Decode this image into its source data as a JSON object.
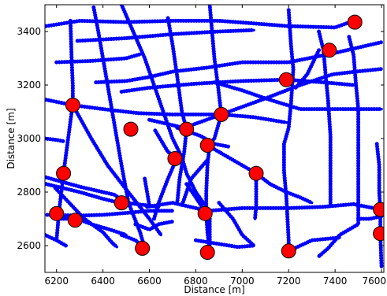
{
  "chart_data": {
    "type": "scatter",
    "xlabel": "Distance [m]",
    "ylabel": "Distance [m]",
    "xlim": [
      6150,
      7610
    ],
    "ylim": [
      2500,
      3500
    ],
    "xticks": [
      6200,
      6400,
      6600,
      6800,
      7000,
      7200,
      7400,
      7600
    ],
    "yticks": [
      2600,
      2800,
      3000,
      3200,
      3400
    ],
    "xtick_labels": [
      "6200",
      "6400",
      "6600",
      "6800",
      "7000",
      "7200",
      "7400",
      "7600"
    ],
    "ytick_labels": [
      "2600",
      "2800",
      "3000",
      "3200",
      "3400"
    ],
    "grid": false,
    "series": [
      {
        "kind": "road-network",
        "color": "#0000ff",
        "roads": [
          [
            [
              6155,
              3420
            ],
            [
              6300,
              3440
            ],
            [
              6500,
              3435
            ],
            [
              6700,
              3440
            ],
            [
              6900,
              3440
            ],
            [
              7200,
              3420
            ],
            [
              7400,
              3415
            ],
            [
              7480,
              3440
            ]
          ],
          [
            [
              6290,
              3365
            ],
            [
              6500,
              3375
            ],
            [
              6700,
              3390
            ],
            [
              6900,
              3400
            ],
            [
              7050,
              3405
            ]
          ],
          [
            [
              6200,
              3285
            ],
            [
              6350,
              3290
            ],
            [
              6500,
              3300
            ],
            [
              6560,
              3315
            ]
          ],
          [
            [
              6370,
              3210
            ],
            [
              6500,
              3215
            ],
            [
              6600,
              3230
            ],
            [
              6700,
              3250
            ],
            [
              6850,
              3265
            ],
            [
              7000,
              3285
            ],
            [
              7200,
              3285
            ],
            [
              7400,
              3320
            ],
            [
              7600,
              3360
            ]
          ],
          [
            [
              6480,
              3175
            ],
            [
              6600,
              3190
            ],
            [
              6800,
              3205
            ],
            [
              7000,
              3215
            ],
            [
              7190,
              3220
            ],
            [
              7350,
              3210
            ],
            [
              7480,
              3200
            ]
          ],
          [
            [
              6155,
              3145
            ],
            [
              6270,
              3125
            ],
            [
              6400,
              3110
            ],
            [
              6550,
              3095
            ],
            [
              6700,
              3090
            ],
            [
              6910,
              3090
            ],
            [
              7050,
              3080
            ],
            [
              7190,
              3060
            ]
          ],
          [
            [
              6600,
              3070
            ],
            [
              6750,
              3040
            ],
            [
              6910,
              3090
            ],
            [
              7100,
              3150
            ],
            [
              7250,
              3200
            ],
            [
              7390,
              3240
            ],
            [
              7490,
              3250
            ],
            [
              7600,
              3260
            ]
          ],
          [
            [
              6880,
              3210
            ],
            [
              7000,
              3180
            ],
            [
              7100,
              3150
            ],
            [
              7250,
              3110
            ],
            [
              7400,
              3110
            ],
            [
              7600,
              3110
            ]
          ],
          [
            [
              6590,
              2745
            ],
            [
              6700,
              2760
            ],
            [
              6850,
              2730
            ],
            [
              7000,
              2740
            ],
            [
              7200,
              2740
            ],
            [
              7350,
              2745
            ],
            [
              7480,
              2755
            ],
            [
              7595,
              2735
            ]
          ],
          [
            [
              6155,
              2855
            ],
            [
              6300,
              2820
            ],
            [
              6450,
              2790
            ],
            [
              6500,
              2760
            ],
            [
              6640,
              2745
            ]
          ],
          [
            [
              6155,
              2830
            ],
            [
              6300,
              2800
            ],
            [
              6400,
              2775
            ],
            [
              6480,
              2758
            ]
          ],
          [
            [
              6160,
              2715
            ],
            [
              6300,
              2712
            ],
            [
              6400,
              2715
            ],
            [
              6500,
              2722
            ],
            [
              6600,
              2730
            ],
            [
              6700,
              2730
            ]
          ],
          [
            [
              6220,
              2700
            ],
            [
              6290,
              2700
            ],
            [
              6350,
              2680
            ],
            [
              6430,
              2660
            ],
            [
              6500,
              2640
            ]
          ],
          [
            [
              6800,
              2620
            ],
            [
              6980,
              2595
            ],
            [
              7050,
              2600
            ]
          ],
          [
            [
              6260,
              3440
            ],
            [
              6265,
              3300
            ],
            [
              6270,
              3200
            ],
            [
              6270,
              3130
            ],
            [
              6250,
              3000
            ],
            [
              6230,
              2870
            ],
            [
              6210,
              2720
            ],
            [
              6200,
              2620
            ]
          ],
          [
            [
              6270,
              3125
            ],
            [
              6350,
              3000
            ],
            [
              6420,
              2900
            ],
            [
              6500,
              2810
            ],
            [
              6600,
              2700
            ],
            [
              6650,
              2640
            ]
          ],
          [
            [
              6195,
              2815
            ],
            [
              6260,
              2755
            ],
            [
              6320,
              2700
            ],
            [
              6400,
              2650
            ],
            [
              6440,
              2610
            ],
            [
              6460,
              2595
            ]
          ],
          [
            [
              6360,
              3490
            ],
            [
              6380,
              3400
            ],
            [
              6400,
              3300
            ],
            [
              6420,
              3200
            ],
            [
              6440,
              3100
            ],
            [
              6460,
              3000
            ],
            [
              6480,
              2900
            ],
            [
              6510,
              2760
            ],
            [
              6560,
              2650
            ],
            [
              6580,
              2590
            ]
          ],
          [
            [
              6480,
              3500
            ],
            [
              6530,
              3400
            ],
            [
              6580,
              3300
            ],
            [
              6620,
              3200
            ],
            [
              6660,
              3100
            ],
            [
              6700,
              3000
            ],
            [
              6740,
              2930
            ],
            [
              6760,
              2870
            ],
            [
              6800,
              2800
            ],
            [
              6840,
              2750
            ]
          ],
          [
            [
              6680,
              3450
            ],
            [
              6700,
              3350
            ],
            [
              6720,
              3230
            ],
            [
              6740,
              3100
            ],
            [
              6760,
              3035
            ],
            [
              6750,
              2950
            ],
            [
              6730,
              2850
            ],
            [
              6720,
              2760
            ]
          ],
          [
            [
              6860,
              3500
            ],
            [
              6870,
              3400
            ],
            [
              6880,
              3300
            ],
            [
              6895,
              3200
            ],
            [
              6910,
              3090
            ],
            [
              6880,
              3000
            ],
            [
              6860,
              2980
            ],
            [
              6850,
              2900
            ],
            [
              6845,
              2800
            ],
            [
              6845,
              2720
            ],
            [
              6850,
              2650
            ],
            [
              6860,
              2575
            ]
          ],
          [
            [
              6625,
              3030
            ],
            [
              6680,
              2950
            ],
            [
              6720,
              2930
            ],
            [
              6680,
              2850
            ],
            [
              6640,
              2760
            ],
            [
              6620,
              2700
            ]
          ],
          [
            [
              6880,
              2960
            ],
            [
              6960,
              2920
            ],
            [
              7060,
              2870
            ],
            [
              7120,
              2830
            ],
            [
              7190,
              2800
            ],
            [
              7250,
              2780
            ],
            [
              7300,
              2760
            ]
          ],
          [
            [
              6900,
              2760
            ],
            [
              6960,
              2700
            ],
            [
              7000,
              2640
            ],
            [
              7050,
              2600
            ]
          ],
          [
            [
              7060,
              2870
            ],
            [
              7060,
              2750
            ],
            [
              7055,
              2700
            ]
          ],
          [
            [
              7200,
              3480
            ],
            [
              7210,
              3350
            ],
            [
              7220,
              3260
            ],
            [
              7210,
              3130
            ],
            [
              7200,
              3040
            ],
            [
              7180,
              2980
            ],
            [
              7180,
              2880
            ],
            [
              7190,
              2780
            ],
            [
              7195,
              2700
            ],
            [
              7200,
              2620
            ],
            [
              7200,
              2580
            ]
          ],
          [
            [
              7330,
              3400
            ],
            [
              7350,
              3330
            ],
            [
              7360,
              3230
            ],
            [
              7370,
              3140
            ],
            [
              7380,
              3010
            ],
            [
              7380,
              2930
            ],
            [
              7380,
              2840
            ],
            [
              7380,
              2750
            ]
          ],
          [
            [
              7330,
              3330
            ],
            [
              7280,
              3240
            ],
            [
              7230,
              3190
            ]
          ],
          [
            [
              7460,
              3380
            ],
            [
              7480,
              3310
            ],
            [
              7490,
              3200
            ],
            [
              7500,
              3110
            ],
            [
              7500,
              3000
            ],
            [
              7500,
              2900
            ],
            [
              7500,
              2800
            ],
            [
              7500,
              2680
            ],
            [
              7420,
              2640
            ],
            [
              7370,
              2590
            ],
            [
              7330,
              2560
            ]
          ],
          [
            [
              7200,
              2580
            ],
            [
              7300,
              2620
            ],
            [
              7420,
              2630
            ]
          ],
          [
            [
              7580,
              2980
            ],
            [
              7590,
              2900
            ],
            [
              7590,
              2800
            ],
            [
              7595,
              2735
            ],
            [
              7595,
              2640
            ],
            [
              7600,
              2520
            ]
          ],
          [
            [
              6850,
              2920
            ],
            [
              6780,
              2850
            ],
            [
              6760,
              2800
            ],
            [
              6740,
              2750
            ]
          ],
          [
            [
              6760,
              2830
            ],
            [
              6800,
              2780
            ],
            [
              6830,
              2740
            ]
          ],
          [
            [
              6580,
              2850
            ],
            [
              6590,
              2800
            ],
            [
              6600,
              2750
            ]
          ],
          [
            [
              6720,
              3040
            ],
            [
              6820,
              3010
            ],
            [
              6880,
              2980
            ],
            [
              6940,
              2970
            ]
          ],
          [
            [
              6150,
              3000
            ],
            [
              6200,
              2995
            ],
            [
              6230,
              2990
            ]
          ],
          [
            [
              6150,
              2640
            ],
            [
              6200,
              2620
            ],
            [
              6240,
              2600
            ]
          ],
          [
            [
              6540,
              2680
            ],
            [
              6600,
              2660
            ],
            [
              6640,
              2680
            ],
            [
              6700,
              2690
            ]
          ],
          [
            [
              6860,
              2700
            ],
            [
              6860,
              2610
            ],
            [
              6855,
              2575
            ]
          ],
          [
            [
              6480,
              2640
            ],
            [
              6540,
              2620
            ],
            [
              6580,
              2590
            ]
          ],
          [
            [
              7500,
              2700
            ],
            [
              7550,
              2700
            ],
            [
              7600,
              2710
            ]
          ]
        ]
      },
      {
        "kind": "markers",
        "color": "#ff0000",
        "points": [
          [
            7485,
            3435
          ],
          [
            7375,
            3330
          ],
          [
            7190,
            3220
          ],
          [
            6270,
            3125
          ],
          [
            6520,
            3035
          ],
          [
            6760,
            3035
          ],
          [
            6910,
            3090
          ],
          [
            6850,
            2975
          ],
          [
            6710,
            2925
          ],
          [
            7060,
            2870
          ],
          [
            6230,
            2870
          ],
          [
            6480,
            2760
          ],
          [
            6200,
            2720
          ],
          [
            6280,
            2695
          ],
          [
            6840,
            2720
          ],
          [
            7595,
            2735
          ],
          [
            7595,
            2645
          ],
          [
            6570,
            2590
          ],
          [
            6850,
            2575
          ],
          [
            7200,
            2580
          ]
        ]
      }
    ]
  }
}
